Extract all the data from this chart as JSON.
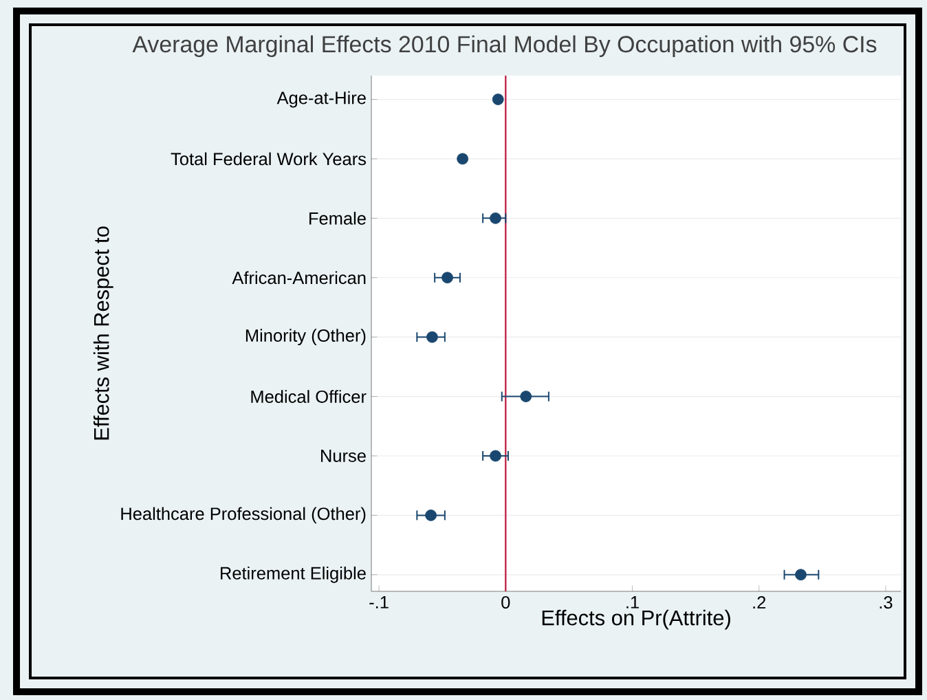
{
  "chart_data": {
    "type": "scatter",
    "orientation": "horizontal",
    "title": "Average Marginal Effects 2010 Final Model By Occupation with 95% CIs",
    "xlabel": "Effects on Pr(Attrite)",
    "ylabel": "Effects with Respect to",
    "categories": [
      "Age-at-Hire",
      "Total Federal Work Years",
      "Female",
      "African-American",
      "Minority (Other)",
      "Medical Officer",
      "Nurse",
      "Healthcare Professional (Other)",
      "Retirement Eligible"
    ],
    "values": [
      -0.006,
      -0.034,
      -0.008,
      -0.046,
      -0.058,
      0.016,
      -0.008,
      -0.059,
      0.233
    ],
    "errors": [
      null,
      null,
      [
        -0.018,
        0.0
      ],
      [
        -0.056,
        -0.036
      ],
      [
        -0.07,
        -0.048
      ],
      [
        -0.003,
        0.034
      ],
      [
        -0.018,
        0.002
      ],
      [
        -0.07,
        -0.048
      ],
      [
        0.22,
        0.247
      ]
    ],
    "color": "#1a476f",
    "marker": "circle",
    "grid": "y",
    "xlim": [
      -0.106,
      0.312
    ],
    "xticks": [
      {
        "value": -0.1,
        "label": "-.1"
      },
      {
        "value": 0,
        "label": "0"
      },
      {
        "value": 0.1,
        "label": ".1"
      },
      {
        "value": 0.2,
        "label": ".2"
      },
      {
        "value": 0.3,
        "label": ".3"
      }
    ],
    "ref_lines": [
      {
        "axis": "x",
        "value": 0,
        "color": "#c0284a"
      }
    ]
  }
}
